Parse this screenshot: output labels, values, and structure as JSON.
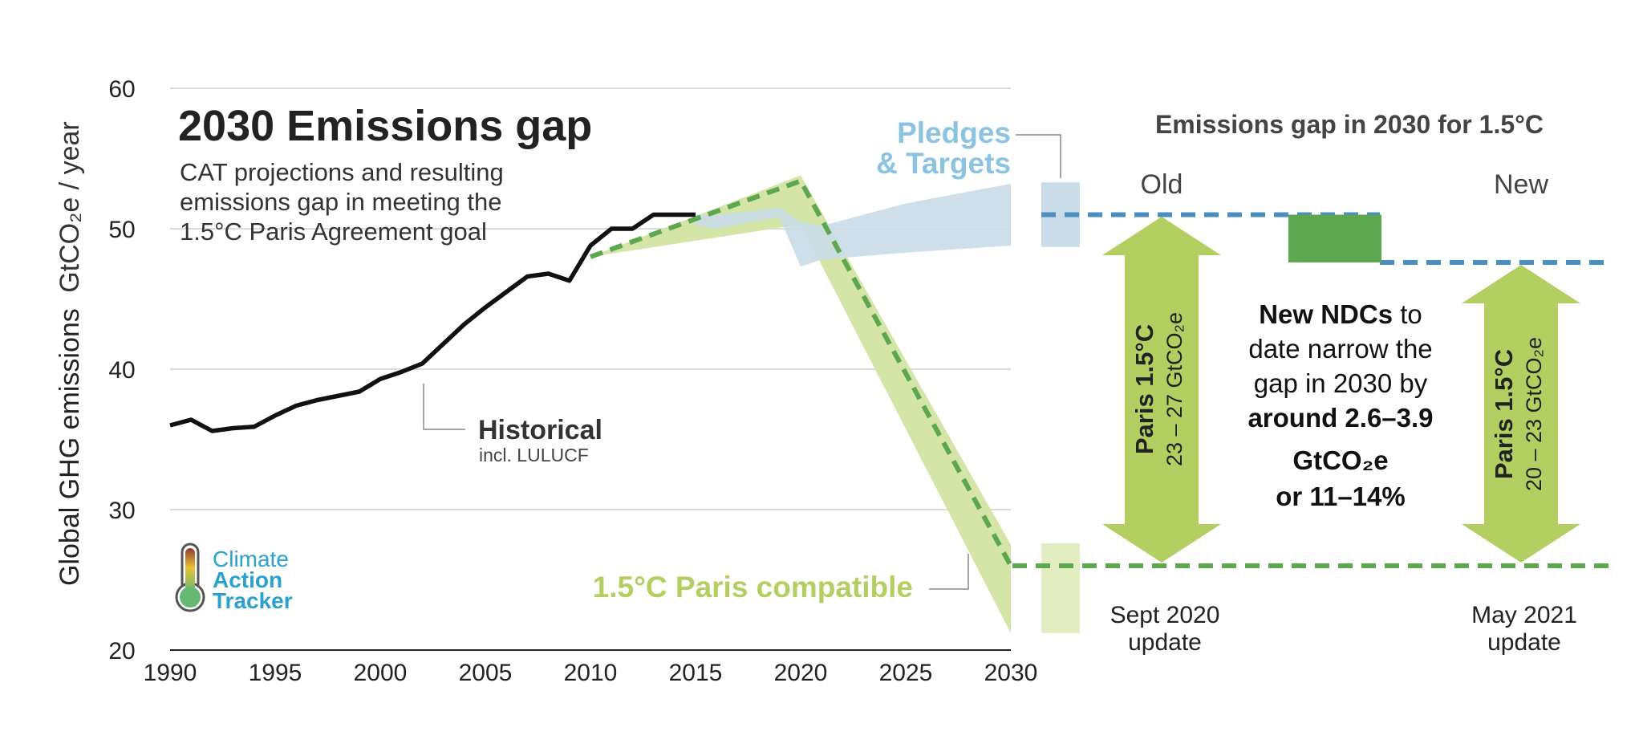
{
  "colors": {
    "historical": "#111111",
    "paris_fill": "#d3e3a2",
    "paris_fill_light": "#e3edc2",
    "paris_dash": "#5da84f",
    "pledges_fill": "#c9dce8",
    "pledges_text": "#8cc3e0",
    "pledges_dash": "#4a8fc0",
    "arrow": "#b3cf62",
    "dark_green": "#5da84f",
    "grid": "#cfcfcf",
    "text_dark": "#222222",
    "text_grey": "#444444",
    "logo_blue": "#2aa1cf"
  },
  "chart_data": {
    "type": "line",
    "title": "2030 Emissions gap",
    "subtitle_lines": [
      "CAT projections and resulting",
      "emissions gap in meeting the",
      "1.5°C Paris Agreement goal"
    ],
    "ylabel": "Global GHG emissions",
    "ylabel_unit": "GtCO₂e / year",
    "xlim": [
      1990,
      2030
    ],
    "ylim": [
      20,
      60
    ],
    "x_ticks": [
      1990,
      1995,
      2000,
      2005,
      2010,
      2015,
      2020,
      2025,
      2030
    ],
    "y_ticks": [
      20,
      30,
      40,
      50,
      60
    ],
    "grid": true,
    "series": [
      {
        "name": "Historical",
        "x": [
          1990,
          1991,
          1992,
          1993,
          1994,
          1995,
          1996,
          1997,
          1998,
          1999,
          2000,
          2001,
          2002,
          2003,
          2004,
          2005,
          2006,
          2007,
          2008,
          2009,
          2010,
          2011,
          2012,
          2013,
          2014,
          2015
        ],
        "y": [
          36.0,
          36.4,
          35.6,
          35.8,
          35.9,
          36.7,
          37.4,
          37.8,
          38.1,
          38.4,
          39.3,
          39.8,
          40.4,
          41.8,
          43.2,
          44.4,
          45.5,
          46.6,
          46.8,
          46.3,
          48.8,
          50.0,
          50.0,
          51.0,
          51.0,
          51.0
        ]
      },
      {
        "name": "Pledges & Targets",
        "kind": "band",
        "x": [
          2015,
          2016,
          2018,
          2019,
          2020,
          2021,
          2025,
          2030
        ],
        "upper": [
          51.0,
          51.0,
          51.3,
          51.5,
          50.5,
          50.2,
          51.8,
          53.2
        ],
        "lower": [
          50.2,
          50.0,
          50.6,
          50.8,
          47.3,
          47.8,
          48.3,
          48.8
        ]
      },
      {
        "name": "1.5°C Paris compatible",
        "kind": "band",
        "x": [
          2010,
          2020,
          2030
        ],
        "upper": [
          48.0,
          53.8,
          27.5
        ],
        "lower": [
          48.0,
          50.3,
          21.2
        ]
      },
      {
        "name": "1.5°C Paris compatible (median)",
        "kind": "dashed",
        "x": [
          2010,
          2020,
          2030
        ],
        "y": [
          48.0,
          53.4,
          26.0
        ]
      }
    ],
    "annotations": {
      "historical_label": "Historical",
      "historical_sub": "incl. LULUCF",
      "pledges_label_1": "Pledges",
      "pledges_label_2": "& Targets",
      "paris_label": "1.5°C Paris compatible"
    }
  },
  "gap_panel": {
    "title": "Emissions gap in 2030 for 1.5°C",
    "old_label": "Old",
    "new_label": "New",
    "old_arrow_title": "Paris 1.5°C",
    "old_arrow_sub": "23 – 27 GtCO₂e",
    "new_arrow_title": "Paris 1.5°C",
    "new_arrow_sub": "20 – 23 GtCO₂e",
    "old_date_1": "Sept 2020",
    "old_date_2": "update",
    "new_date_1": "May 2021",
    "new_date_2": "update",
    "old_gap_top_value": 51.0,
    "new_gap_top_value": 47.6,
    "paris_2030_value": 26.0,
    "pledges_2030_range": [
      48.7,
      53.3
    ],
    "paris_2030_range": [
      21.2,
      27.6
    ],
    "message": {
      "bold_1": "New NDCs",
      "text_1": " to",
      "line_2": "date narrow the",
      "line_3": "gap in 2030 by",
      "bold_4": "around 2.6–3.9",
      "bold_5": "GtCO₂e",
      "bold_6": "or 11–14%"
    }
  },
  "logo": {
    "line_1": "Climate",
    "line_2": "Action",
    "line_3": "Tracker"
  }
}
